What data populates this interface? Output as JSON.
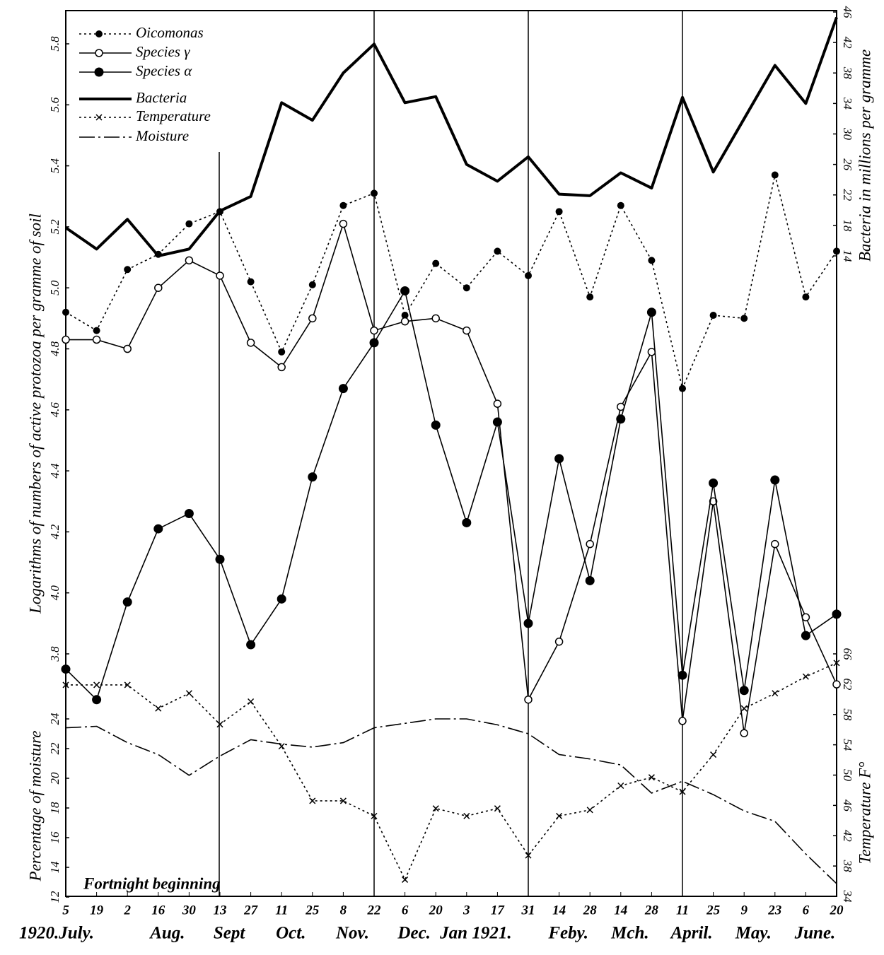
{
  "chart_data": {
    "type": "line",
    "ylabel": "Logarithms of numbers of active protozoa per gramme of soil",
    "y2label": "Bacteria in millions per gramme",
    "y3label": "Percentage of moisture",
    "y4label": "Temperature F°",
    "annotation": "Fortnight beginning",
    "categories": [
      "5",
      "19",
      "2",
      "16",
      "30",
      "13",
      "27",
      "11",
      "25",
      "8",
      "22",
      "6",
      "20",
      "3",
      "17",
      "31",
      "14",
      "28",
      "14",
      "28",
      "11",
      "25",
      "9",
      "23",
      "6",
      "20"
    ],
    "months": [
      "1920.July.",
      null,
      null,
      "Aug.",
      null,
      "Sept",
      null,
      "Oct.",
      null,
      "Nov.",
      null,
      "Dec.",
      null,
      "Jan 1921.",
      null,
      null,
      "Feby.",
      null,
      "Mch.",
      null,
      "April.",
      null,
      "May.",
      null,
      "June.",
      null
    ],
    "ylim": [
      3.8,
      5.8
    ],
    "yticks": [
      3.8,
      {
        "value": 4,
        "label": "4.0"
      },
      4.2,
      4.4,
      4.6,
      4.8,
      {
        "value": 5,
        "label": "5.0"
      },
      5.2,
      5.4,
      5.6,
      5.8
    ],
    "y2lim": [
      14,
      46
    ],
    "y2ticks": [
      14,
      18,
      22,
      26,
      30,
      34,
      38,
      42,
      46
    ],
    "y3lim": [
      12,
      24
    ],
    "y3ticks": [
      12,
      14,
      16,
      18,
      20,
      22,
      24
    ],
    "y4lim": [
      34,
      66
    ],
    "y4ticks": [
      34,
      38,
      42,
      46,
      50,
      54,
      58,
      62,
      66
    ],
    "series": [
      {
        "name": "Oicomonas",
        "color": "#000000",
        "line_style": "dotted",
        "marker": "dot",
        "axis": "y",
        "values": [
          4.92,
          4.86,
          5.06,
          5.11,
          5.21,
          5.25,
          5.02,
          4.79,
          5.01,
          5.27,
          5.31,
          4.91,
          5.08,
          5.0,
          5.12,
          5.04,
          5.25,
          4.97,
          5.27,
          5.09,
          4.67,
          4.91,
          4.9,
          5.37,
          4.97,
          5.12
        ]
      },
      {
        "name": "Species γ",
        "color": "#000000",
        "line_style": "solid",
        "marker": "circle",
        "axis": "y",
        "values": [
          4.83,
          4.83,
          4.8,
          5.0,
          5.09,
          5.04,
          4.82,
          4.74,
          4.9,
          5.21,
          4.86,
          4.89,
          4.9,
          4.86,
          4.62,
          3.65,
          3.84,
          4.16,
          4.61,
          4.79,
          3.58,
          4.3,
          3.54,
          4.16,
          3.92,
          3.7
        ]
      },
      {
        "name": "Species α",
        "color": "#000000",
        "line_style": "solid",
        "marker": "big-dot",
        "axis": "y",
        "values": [
          3.75,
          3.65,
          3.97,
          4.21,
          4.26,
          4.11,
          3.83,
          3.98,
          4.38,
          4.67,
          4.82,
          4.99,
          4.55,
          4.23,
          4.56,
          3.9,
          4.44,
          4.04,
          4.57,
          4.92,
          3.73,
          4.36,
          3.68,
          4.37,
          3.86,
          3.93
        ]
      },
      {
        "name": "Bacteria",
        "color": "#000000",
        "line_style": "thick",
        "marker": "none",
        "axis": "y2",
        "values": [
          17.7,
          14.9,
          18.8,
          14.0,
          14.9,
          19.9,
          21.8,
          34.1,
          31.8,
          38.0,
          41.8,
          34.1,
          34.9,
          26.0,
          23.8,
          27.0,
          22.1,
          21.9,
          24.9,
          22.9,
          34.8,
          25.0,
          32.0,
          39.0,
          34.0,
          45.3
        ]
      },
      {
        "name": "Temperature",
        "color": "#000000",
        "line_style": "dotted",
        "marker": "x",
        "axis": "y4",
        "values": [
          61.9,
          61.9,
          61.9,
          58.8,
          60.8,
          56.7,
          59.7,
          53.8,
          46.6,
          46.6,
          44.6,
          36.2,
          45.6,
          44.6,
          45.6,
          39.4,
          44.6,
          45.4,
          48.6,
          49.7,
          47.8,
          52.7,
          58.8,
          60.8,
          63.0,
          64.8
        ]
      },
      {
        "name": "Moisture",
        "color": "#000000",
        "line_style": "dash-dot",
        "marker": "none",
        "axis": "y3",
        "values": [
          23.4,
          23.5,
          22.4,
          21.6,
          20.2,
          21.5,
          22.6,
          22.3,
          22.1,
          22.4,
          23.4,
          23.7,
          24.0,
          24.0,
          23.6,
          23.0,
          21.6,
          21.3,
          20.9,
          19.0,
          19.8,
          18.9,
          17.8,
          17.1,
          14.9,
          12.9
        ]
      }
    ]
  }
}
